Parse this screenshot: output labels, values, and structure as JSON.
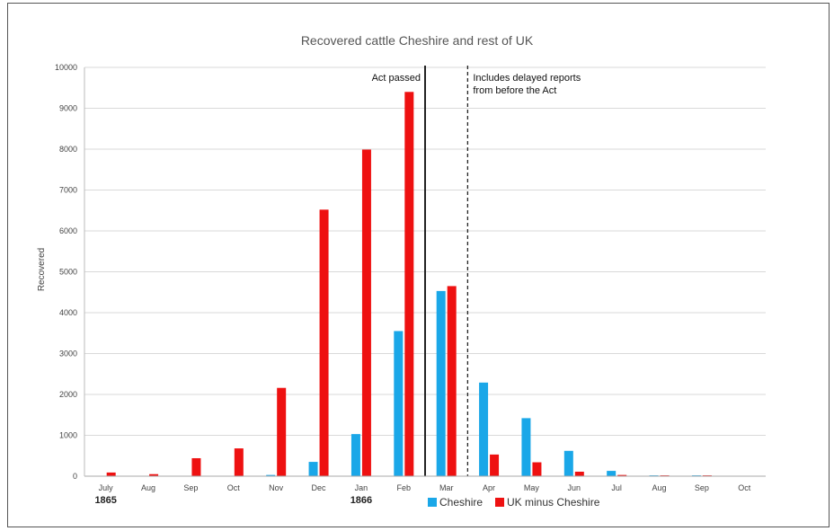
{
  "chart_data": {
    "type": "bar",
    "title": "Recovered cattle Cheshire and rest of UK",
    "ylabel": "Recovered",
    "xlabel": "",
    "ylim": [
      0,
      10000
    ],
    "yticks": [
      0,
      1000,
      2000,
      3000,
      4000,
      5000,
      6000,
      7000,
      8000,
      9000,
      10000
    ],
    "grid": true,
    "categories": [
      "July",
      "Aug",
      "Sep",
      "Oct",
      "Nov",
      "Dec",
      "Jan",
      "Feb",
      "Mar",
      "Apr",
      "May",
      "Jun",
      "Jul",
      "Aug",
      "Sep",
      "Oct"
    ],
    "year_labels": [
      {
        "category_index": 0,
        "label": "1865"
      },
      {
        "category_index": 6,
        "label": "1866"
      }
    ],
    "series": [
      {
        "name": "Cheshire",
        "color": "#1aa7e8",
        "values": [
          0,
          0,
          0,
          0,
          30,
          350,
          1030,
          3550,
          4530,
          2290,
          1420,
          620,
          130,
          20,
          20,
          0
        ]
      },
      {
        "name": "UK minus Cheshire",
        "color": "#ee1111",
        "values": [
          90,
          50,
          440,
          680,
          2160,
          6520,
          7990,
          9400,
          4650,
          530,
          340,
          110,
          30,
          20,
          20,
          0
        ]
      }
    ],
    "annotations": [
      {
        "text_lines": [
          "Act passed"
        ],
        "between_categories": [
          7,
          8
        ],
        "line_style": "solid"
      },
      {
        "text_lines": [
          "Includes delayed reports",
          "from before the Act"
        ],
        "between_categories": [
          8,
          9
        ],
        "line_style": "dashed"
      }
    ],
    "legend_placement": "bottom"
  }
}
